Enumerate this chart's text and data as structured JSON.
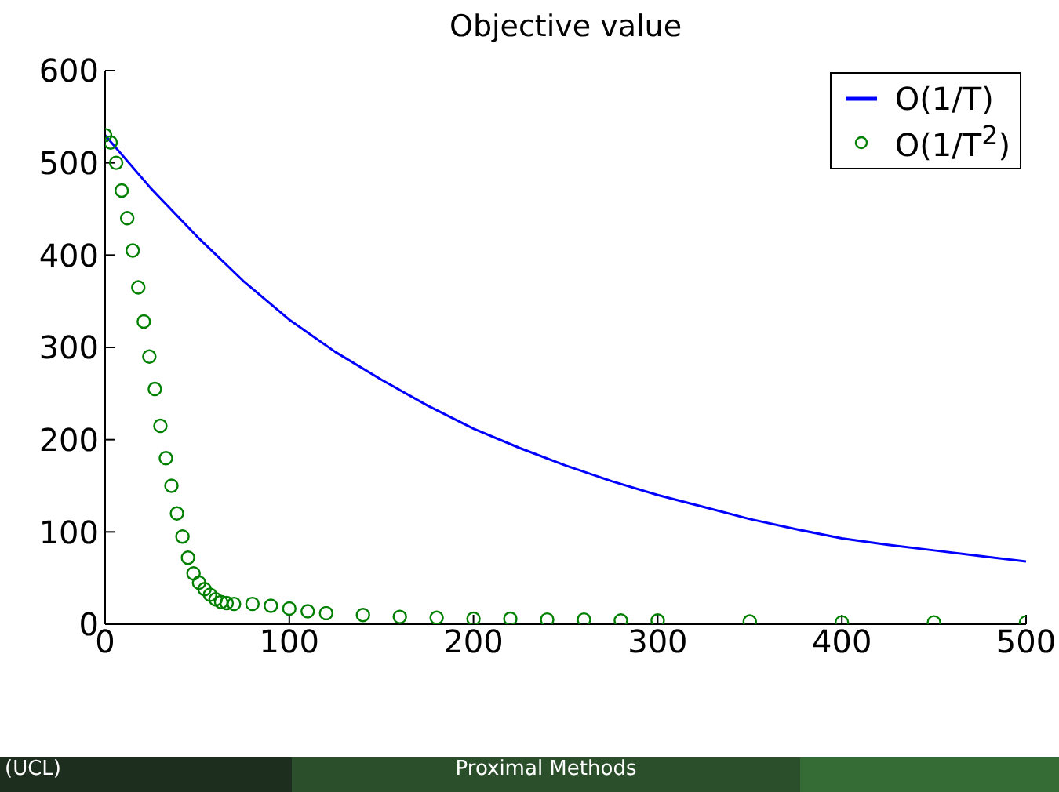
{
  "chart_data": {
    "type": "line",
    "title": "Objective value",
    "xlim": [
      0,
      500
    ],
    "xticks": [
      0,
      100,
      200,
      300,
      400,
      500
    ],
    "ylim": [
      0,
      600
    ],
    "yticks": [
      0,
      100,
      200,
      300,
      400,
      500,
      600
    ],
    "grid": false,
    "legend": "top right",
    "series": [
      {
        "name": "O(1/T)",
        "color": "#0000ff",
        "marker": "none",
        "x": [
          0,
          25,
          50,
          75,
          100,
          125,
          150,
          175,
          200,
          225,
          250,
          275,
          300,
          325,
          350,
          375,
          400,
          425,
          450,
          475,
          500
        ],
        "values": [
          530,
          472,
          420,
          372,
          330,
          295,
          265,
          237,
          212,
          191,
          172,
          155,
          140,
          127,
          114,
          103,
          93,
          86,
          80,
          74,
          68
        ]
      },
      {
        "name": "O(1/T$^{2}$)",
        "type": "scatter",
        "color": "#008000",
        "marker": "circle",
        "x": [
          0,
          3,
          6,
          9,
          12,
          15,
          18,
          21,
          24,
          27,
          30,
          33,
          36,
          39,
          42,
          45,
          48,
          51,
          54,
          57,
          60,
          63,
          66,
          70,
          80,
          90,
          100,
          110,
          120,
          140,
          160,
          180,
          200,
          220,
          240,
          260,
          280,
          300,
          350,
          400,
          450,
          500
        ],
        "values": [
          530,
          522,
          500,
          470,
          440,
          405,
          365,
          328,
          290,
          255,
          215,
          180,
          150,
          120,
          95,
          72,
          55,
          45,
          38,
          32,
          27,
          24,
          23,
          22,
          22,
          20,
          17,
          14,
          12,
          10,
          8,
          7,
          6,
          6,
          5,
          5,
          4,
          4,
          3,
          2,
          2,
          2
        ]
      }
    ],
    "annotations": [
      "(UCL)",
      "Proximal Methods"
    ]
  }
}
